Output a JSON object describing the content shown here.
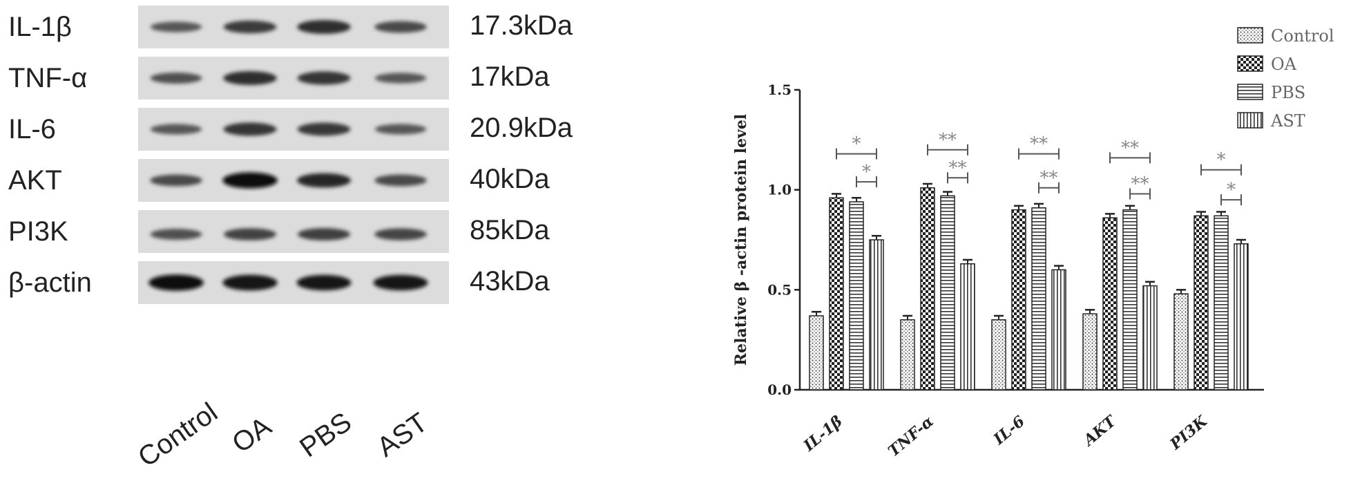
{
  "blot": {
    "proteins": [
      {
        "name": "IL-1β",
        "kda": "17.3kDa",
        "intensity": [
          0.45,
          0.65,
          0.75,
          0.55
        ]
      },
      {
        "name": "TNF-α",
        "kda": "17kDa",
        "intensity": [
          0.5,
          0.75,
          0.7,
          0.45
        ]
      },
      {
        "name": "IL-6",
        "kda": "20.9kDa",
        "intensity": [
          0.45,
          0.7,
          0.68,
          0.45
        ]
      },
      {
        "name": "AKT",
        "kda": "40kDa",
        "intensity": [
          0.55,
          0.95,
          0.8,
          0.55
        ]
      },
      {
        "name": "PI3K",
        "kda": "85kDa",
        "intensity": [
          0.5,
          0.6,
          0.62,
          0.58
        ]
      },
      {
        "name": "β-actin",
        "kda": "43kDa",
        "intensity": [
          0.95,
          0.92,
          0.9,
          0.9
        ]
      }
    ],
    "lanes": [
      "Control",
      "OA",
      "PBS",
      "AST"
    ]
  },
  "chart_data": {
    "type": "bar",
    "ylabel": "Relative β -actin protein level",
    "ylim": [
      0,
      1.5
    ],
    "yticks": [
      "0.0",
      "0.5",
      "1.0",
      "1.5"
    ],
    "categories": [
      "IL-1β",
      "TNF-α",
      "IL-6",
      "AKT",
      "PI3K"
    ],
    "series": [
      {
        "name": "Control",
        "values": [
          0.37,
          0.35,
          0.35,
          0.38,
          0.48
        ],
        "errors": [
          0.02,
          0.02,
          0.02,
          0.02,
          0.02
        ],
        "pattern": "dots"
      },
      {
        "name": "OA",
        "values": [
          0.96,
          1.01,
          0.9,
          0.86,
          0.87
        ],
        "errors": [
          0.02,
          0.02,
          0.02,
          0.02,
          0.02
        ],
        "pattern": "checker"
      },
      {
        "name": "PBS",
        "values": [
          0.94,
          0.97,
          0.91,
          0.9,
          0.87
        ],
        "errors": [
          0.02,
          0.02,
          0.02,
          0.02,
          0.02
        ],
        "pattern": "hlines"
      },
      {
        "name": "AST",
        "values": [
          0.75,
          0.63,
          0.6,
          0.52,
          0.73
        ],
        "errors": [
          0.02,
          0.02,
          0.02,
          0.02,
          0.02
        ],
        "pattern": "vlines"
      }
    ],
    "significance": [
      {
        "category": 0,
        "from": 1,
        "to": 3,
        "y": 1.18,
        "label": "*"
      },
      {
        "category": 0,
        "from": 2,
        "to": 3,
        "y": 1.04,
        "label": "*"
      },
      {
        "category": 1,
        "from": 1,
        "to": 3,
        "y": 1.2,
        "label": "**"
      },
      {
        "category": 1,
        "from": 2,
        "to": 3,
        "y": 1.06,
        "label": "**"
      },
      {
        "category": 2,
        "from": 1,
        "to": 3,
        "y": 1.18,
        "label": "**"
      },
      {
        "category": 2,
        "from": 2,
        "to": 3,
        "y": 1.01,
        "label": "**"
      },
      {
        "category": 3,
        "from": 1,
        "to": 3,
        "y": 1.16,
        "label": "**"
      },
      {
        "category": 3,
        "from": 2,
        "to": 3,
        "y": 0.98,
        "label": "**"
      },
      {
        "category": 4,
        "from": 1,
        "to": 3,
        "y": 1.1,
        "label": "*"
      },
      {
        "category": 4,
        "from": 2,
        "to": 3,
        "y": 0.95,
        "label": "*"
      }
    ],
    "legend": "top-right",
    "grid": false
  }
}
